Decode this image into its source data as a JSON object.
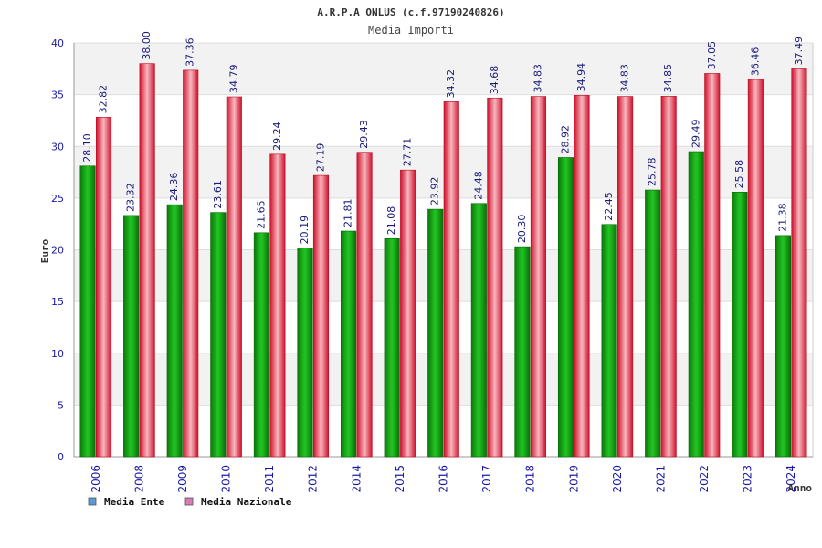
{
  "chart_data": {
    "type": "bar",
    "title": "A.R.P.A ONLUS (c.f.97190240826)",
    "subtitle": "Media Importi",
    "xlabel": "Anno",
    "ylabel": "Euro",
    "ylim": [
      0,
      40
    ],
    "yticks": [
      "0",
      "5",
      "10",
      "15",
      "20",
      "25",
      "30",
      "35",
      "40"
    ],
    "grid": true,
    "legend_position": "bottom-left",
    "categories": [
      "2006",
      "2008",
      "2009",
      "2010",
      "2011",
      "2012",
      "2014",
      "2015",
      "2016",
      "2017",
      "2018",
      "2019",
      "2020",
      "2021",
      "2022",
      "2023",
      "2024"
    ],
    "series": [
      {
        "name": "Media Ente",
        "legend_color": "#5b9bd5",
        "bar_color": "#11a611",
        "values": [
          28.1,
          23.32,
          24.36,
          23.61,
          21.65,
          20.19,
          21.81,
          21.08,
          23.92,
          24.48,
          20.3,
          28.92,
          22.45,
          25.78,
          29.49,
          25.58,
          21.38
        ],
        "labels": [
          "28.10",
          "23.32",
          "24.36",
          "23.61",
          "21.65",
          "20.19",
          "21.81",
          "21.08",
          "23.92",
          "24.48",
          "20.30",
          "28.92",
          "22.45",
          "25.78",
          "29.49",
          "25.58",
          "21.38"
        ]
      },
      {
        "name": "Media Nazionale",
        "legend_color": "#d97bb0",
        "bar_color": "#e8203a",
        "values": [
          32.82,
          38.0,
          37.36,
          34.79,
          29.24,
          27.19,
          29.43,
          27.71,
          34.32,
          34.68,
          34.83,
          34.94,
          34.83,
          34.85,
          37.05,
          36.46,
          37.49
        ],
        "labels": [
          "32.82",
          "38.00",
          "37.36",
          "34.79",
          "29.24",
          "27.19",
          "29.43",
          "27.71",
          "34.32",
          "34.68",
          "34.83",
          "34.94",
          "34.83",
          "34.85",
          "37.05",
          "36.46",
          "37.49"
        ]
      }
    ]
  }
}
